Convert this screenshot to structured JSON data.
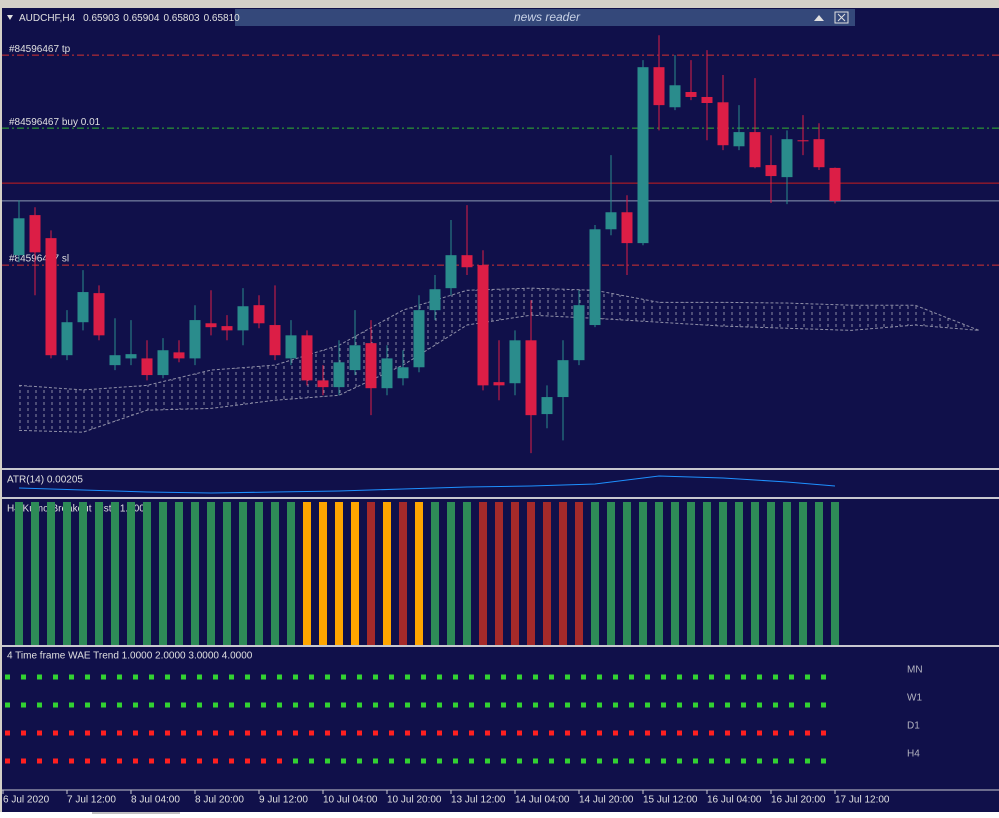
{
  "chart_data": [
    {
      "type": "candlestick",
      "title": "AUDCHF,H4",
      "quote": {
        "values": [
          0.65903,
          0.65904,
          0.65803,
          0.6581
        ],
        "value_labels": [
          "0.65903",
          "0.65904",
          "0.65803",
          "0.65810"
        ]
      },
      "ylim": [
        0.65057,
        0.6632
      ],
      "up_color": "#2a8c8c",
      "down_color": "#dc1e46",
      "open": [
        0.65657,
        0.6577,
        0.65705,
        0.65375,
        0.65468,
        0.6555,
        0.65347,
        0.65366,
        0.65366,
        0.65319,
        0.65383,
        0.65366,
        0.65465,
        0.65457,
        0.65445,
        0.65516,
        0.6546,
        0.65366,
        0.65431,
        0.65304,
        0.65285,
        0.65333,
        0.65409,
        0.65282,
        0.6531,
        0.65341,
        0.65502,
        0.65564,
        0.65657,
        0.65629,
        0.65299,
        0.65296,
        0.65417,
        0.65209,
        0.65257,
        0.65361,
        0.6546,
        0.6573,
        0.65778,
        0.65691,
        0.66187,
        0.66074,
        0.66117,
        0.66103,
        0.66088,
        0.65964,
        0.66004,
        0.65911,
        0.65877,
        0.65981,
        0.65984,
        0.65903
      ],
      "high": [
        0.65812,
        0.65792,
        0.65727,
        0.65502,
        0.65615,
        0.65572,
        0.65479,
        0.65474,
        0.65417,
        0.65423,
        0.65417,
        0.65516,
        0.65558,
        0.65488,
        0.65564,
        0.65544,
        0.65572,
        0.65474,
        0.65445,
        0.65347,
        0.65417,
        0.65502,
        0.65474,
        0.65403,
        0.65389,
        0.65544,
        0.65601,
        0.65756,
        0.65798,
        0.65671,
        0.65417,
        0.65445,
        0.6553,
        0.6529,
        0.65417,
        0.65558,
        0.65742,
        0.65939,
        0.65826,
        0.66207,
        0.66277,
        0.66221,
        0.66207,
        0.66235,
        0.66165,
        0.6608,
        0.66156,
        0.65995,
        0.66009,
        0.66052,
        0.66029,
        0.65904
      ],
      "low": [
        0.65637,
        0.65544,
        0.65366,
        0.65361,
        0.65445,
        0.65417,
        0.65333,
        0.65347,
        0.65304,
        0.6531,
        0.65355,
        0.65347,
        0.65431,
        0.65417,
        0.65403,
        0.65451,
        0.65361,
        0.65347,
        0.6529,
        0.65262,
        0.65262,
        0.65319,
        0.65206,
        0.65262,
        0.6529,
        0.65327,
        0.65474,
        0.65544,
        0.65601,
        0.65276,
        0.65248,
        0.65262,
        0.65099,
        0.65169,
        0.65135,
        0.65347,
        0.65454,
        0.65713,
        0.65601,
        0.65685,
        0.66009,
        0.66066,
        0.66094,
        0.65981,
        0.65953,
        0.65953,
        0.65902,
        0.65804,
        0.65801,
        0.65939,
        0.65897,
        0.65803
      ],
      "close": [
        0.65761,
        0.65665,
        0.65375,
        0.65468,
        0.65553,
        0.65431,
        0.65375,
        0.65378,
        0.65319,
        0.65389,
        0.65366,
        0.65474,
        0.65454,
        0.65445,
        0.65513,
        0.65465,
        0.65375,
        0.65431,
        0.65304,
        0.65285,
        0.65355,
        0.65403,
        0.65282,
        0.65366,
        0.65341,
        0.65502,
        0.65561,
        0.65657,
        0.65623,
        0.6529,
        0.6529,
        0.65417,
        0.65206,
        0.65257,
        0.65361,
        0.65516,
        0.6573,
        0.65778,
        0.65691,
        0.66187,
        0.6608,
        0.66136,
        0.66103,
        0.66086,
        0.65967,
        0.66004,
        0.65905,
        0.6588,
        0.65984,
        0.65978,
        0.65905,
        0.6581
      ],
      "cloud": {
        "color": "#9090a8",
        "x": [
          0,
          4,
          8,
          12,
          16,
          20,
          24,
          28,
          32,
          36,
          40,
          44,
          48,
          52,
          56,
          60
        ],
        "span_a": [
          0.6529,
          0.65277,
          0.6529,
          0.65333,
          0.65347,
          0.65403,
          0.65502,
          0.65558,
          0.65564,
          0.65558,
          0.65524,
          0.65524,
          0.65522,
          0.65516,
          0.65516,
          0.65445
        ],
        "span_b": [
          0.65163,
          0.65158,
          0.6522,
          0.65225,
          0.65248,
          0.65262,
          0.65347,
          0.6546,
          0.65488,
          0.65479,
          0.65468,
          0.65457,
          0.65451,
          0.65445,
          0.6546,
          0.65445
        ]
      },
      "levels": [
        {
          "label": "#84596467 tp",
          "value": 0.66221,
          "color": "#d23232",
          "style": "dashdot"
        },
        {
          "label": "#84596467 buy 0.01",
          "value": 0.66015,
          "color": "#32b432",
          "style": "dashdot"
        },
        {
          "label": "#84596467 sl",
          "value": 0.65629,
          "color": "#d23232",
          "style": "dashdot"
        },
        {
          "value": 0.6586,
          "color": "#c81e1e",
          "style": "solid"
        },
        {
          "value": 0.6581,
          "color": "#8c9ab4",
          "style": "solid"
        }
      ],
      "x_labels": [
        "6 Jul 2020",
        "7 Jul 12:00",
        "8 Jul 04:00",
        "8 Jul 20:00",
        "9 Jul 12:00",
        "10 Jul 04:00",
        "10 Jul 20:00",
        "13 Jul 12:00",
        "14 Jul 04:00",
        "14 Jul 20:00",
        "15 Jul 12:00",
        "16 Jul 04:00",
        "16 Jul 20:00",
        "17 Jul 12:00"
      ]
    },
    {
      "type": "line",
      "title": "ATR(14) 0.00205",
      "color": "#1e90ff",
      "ylim": [
        0.00117,
        0.00333
      ],
      "x": [
        0,
        4,
        8,
        12,
        16,
        20,
        24,
        28,
        32,
        36,
        40,
        44,
        48,
        51
      ],
      "values": [
        0.00189,
        0.00173,
        0.00157,
        0.00149,
        0.00157,
        0.00165,
        0.00181,
        0.00197,
        0.00205,
        0.00221,
        0.00285,
        0.00269,
        0.00237,
        0.00205
      ]
    },
    {
      "type": "histogram",
      "title": "H4 Kumo Breakout Histo 1.0000",
      "ylim": [
        0,
        1
      ],
      "values": [
        1,
        1,
        1,
        1,
        1,
        1,
        1,
        1,
        1,
        1,
        1,
        1,
        1,
        1,
        1,
        1,
        1,
        1,
        1,
        1,
        1,
        1,
        1,
        1,
        1,
        1,
        1,
        1,
        1,
        1,
        1,
        1,
        1,
        1,
        1,
        1,
        1,
        1,
        1,
        1,
        1,
        1,
        1,
        1,
        1,
        1,
        1,
        1,
        1,
        1,
        1,
        1
      ],
      "colors": [
        "#2e8b57",
        "#2e8b57",
        "#2e8b57",
        "#2e8b57",
        "#2e8b57",
        "#2e8b57",
        "#2e8b57",
        "#2e8b57",
        "#2e8b57",
        "#2e8b57",
        "#2e8b57",
        "#2e8b57",
        "#2e8b57",
        "#2e8b57",
        "#2e8b57",
        "#2e8b57",
        "#2e8b57",
        "#2e8b57",
        "#ffa500",
        "#ffa500",
        "#ffa500",
        "#ffa500",
        "#a52a2a",
        "#ffa500",
        "#a52a2a",
        "#ffa500",
        "#2e8b57",
        "#2e8b57",
        "#2e8b57",
        "#a52a2a",
        "#a52a2a",
        "#a52a2a",
        "#a52a2a",
        "#a52a2a",
        "#a52a2a",
        "#a52a2a",
        "#2e8b57",
        "#2e8b57",
        "#2e8b57",
        "#2e8b57",
        "#2e8b57",
        "#2e8b57",
        "#2e8b57",
        "#2e8b57",
        "#2e8b57",
        "#2e8b57",
        "#2e8b57",
        "#2e8b57",
        "#2e8b57",
        "#2e8b57",
        "#2e8b57",
        "#2e8b57"
      ]
    },
    {
      "type": "dots",
      "title": "4 Time frame WAE Trend 1.0000 2.0000 3.0000 4.0000",
      "ylim": [
        1,
        4
      ],
      "series": [
        {
          "name": "MN",
          "color": "#32d232",
          "values": [
            1,
            1,
            1,
            1,
            1,
            1,
            1,
            1,
            1,
            1,
            1,
            1,
            1,
            1,
            1,
            1,
            1,
            1,
            1,
            1,
            1,
            1,
            1,
            1,
            1,
            1,
            1,
            1,
            1,
            1,
            1,
            1,
            1,
            1,
            1,
            1,
            1,
            1,
            1,
            1,
            1,
            1,
            1,
            1,
            1,
            1,
            1,
            1,
            1,
            1,
            1,
            1
          ]
        },
        {
          "name": "W1",
          "color": "#32d232",
          "values": [
            2,
            2,
            2,
            2,
            2,
            2,
            2,
            2,
            2,
            2,
            2,
            2,
            2,
            2,
            2,
            2,
            2,
            2,
            2,
            2,
            2,
            2,
            2,
            2,
            2,
            2,
            2,
            2,
            2,
            2,
            2,
            2,
            2,
            2,
            2,
            2,
            2,
            2,
            2,
            2,
            2,
            2,
            2,
            2,
            2,
            2,
            2,
            2,
            2,
            2,
            2,
            2
          ]
        },
        {
          "name": "D1",
          "color": "#ff2020",
          "values": [
            3,
            3,
            3,
            3,
            3,
            3,
            3,
            3,
            3,
            3,
            3,
            3,
            3,
            3,
            3,
            3,
            3,
            3,
            3,
            3,
            3,
            3,
            3,
            3,
            3,
            3,
            3,
            3,
            3,
            3,
            3,
            3,
            3,
            3,
            3,
            3,
            3,
            3,
            3,
            3,
            3,
            3,
            3,
            3,
            3,
            3,
            3,
            3,
            3,
            3,
            3,
            3
          ]
        },
        {
          "name": "H4",
          "color": "#32d232",
          "values": [
            4,
            4,
            4,
            4,
            4,
            4,
            4,
            4,
            4,
            4,
            4,
            4,
            4,
            4,
            4,
            4,
            4,
            4,
            4,
            4,
            4,
            4,
            4,
            4,
            4,
            4,
            4,
            4,
            4,
            4,
            4,
            4,
            4,
            4,
            4,
            4,
            4,
            4,
            4,
            4,
            4,
            4,
            4,
            4,
            4,
            4,
            4,
            4,
            4,
            4,
            4,
            4
          ],
          "colors": [
            "#ff2020",
            "#ff2020",
            "#ff2020",
            "#ff2020",
            "#ff2020",
            "#ff2020",
            "#ff2020",
            "#ff2020",
            "#ff2020",
            "#ff2020",
            "#ff2020",
            "#ff2020",
            "#ff2020",
            "#ff2020",
            "#ff2020",
            "#ff2020",
            "#ff2020",
            "#ff2020",
            "#32d232",
            "#32d232",
            "#32d232",
            "#32d232",
            "#32d232",
            "#32d232",
            "#32d232",
            "#32d232",
            "#32d232",
            "#32d232",
            "#32d232",
            "#32d232",
            "#32d232",
            "#32d232",
            "#32d232",
            "#32d232",
            "#32d232",
            "#32d232",
            "#32d232",
            "#32d232",
            "#32d232",
            "#32d232",
            "#32d232",
            "#32d232",
            "#32d232",
            "#32d232",
            "#32d232",
            "#32d232",
            "#32d232",
            "#32d232",
            "#32d232",
            "#32d232",
            "#32d232",
            "#32d232"
          ]
        }
      ]
    }
  ],
  "news_reader": "news reader"
}
